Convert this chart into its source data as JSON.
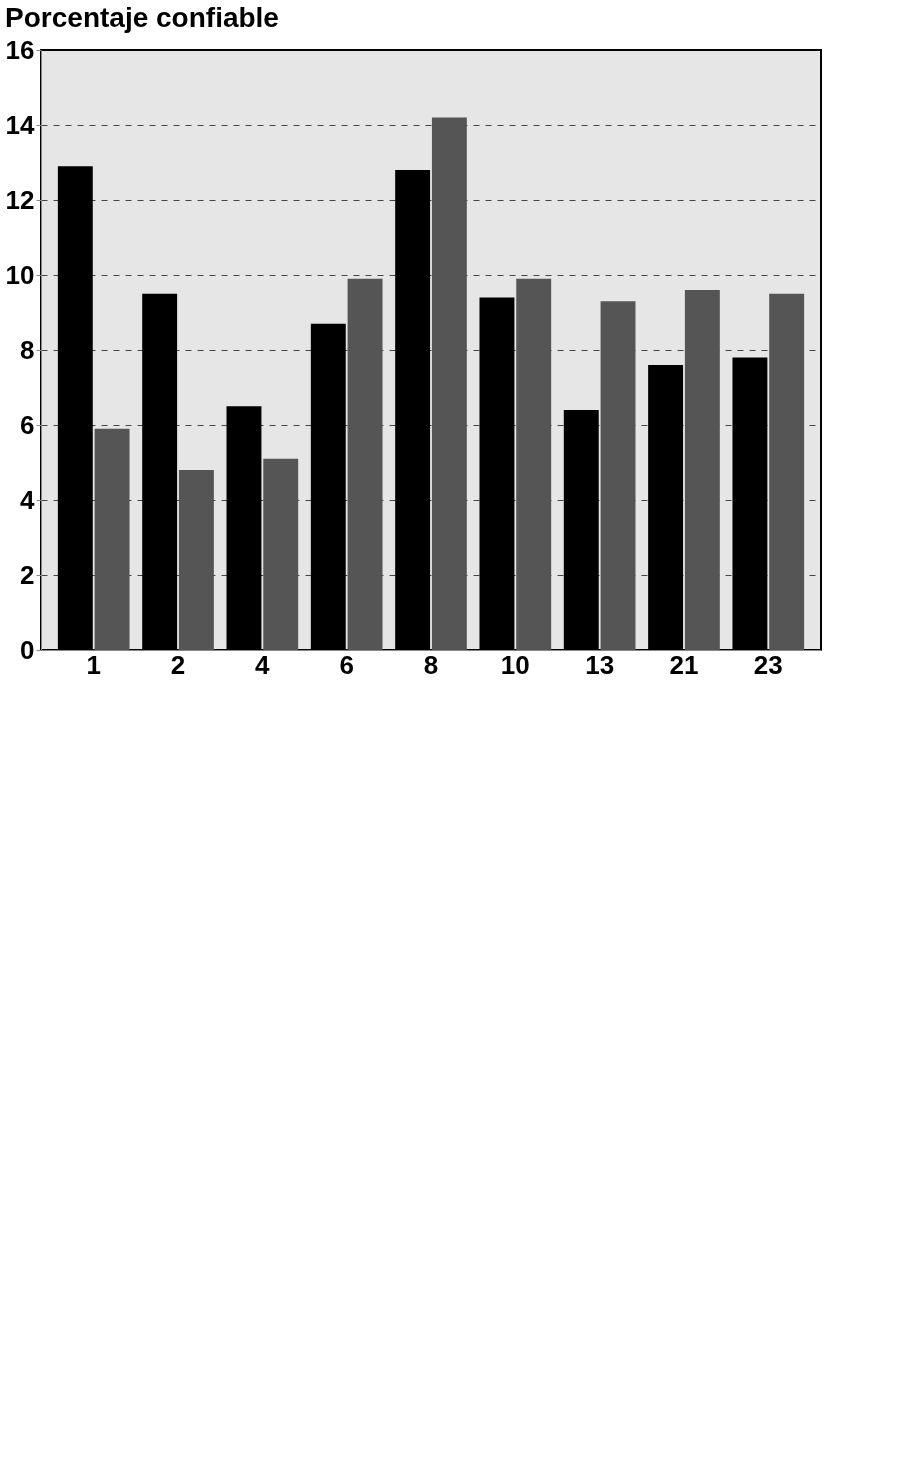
{
  "chart_data": {
    "type": "bar",
    "title": "Porcentaje confiable",
    "categories": [
      "1",
      "2",
      "4",
      "6",
      "8",
      "10",
      "13",
      "21",
      "23"
    ],
    "series": [
      {
        "color": "#000000",
        "values": [
          12.9,
          9.5,
          6.5,
          8.7,
          12.8,
          9.4,
          6.4,
          7.6,
          7.8
        ]
      },
      {
        "color": "#555555",
        "values": [
          5.9,
          4.8,
          5.1,
          9.9,
          14.2,
          9.9,
          9.3,
          9.6,
          9.5
        ]
      }
    ],
    "ylim": [
      0,
      16
    ],
    "yticks": [
      0,
      2,
      4,
      6,
      8,
      10,
      12,
      14,
      16
    ],
    "grid": "y",
    "legend": false
  }
}
